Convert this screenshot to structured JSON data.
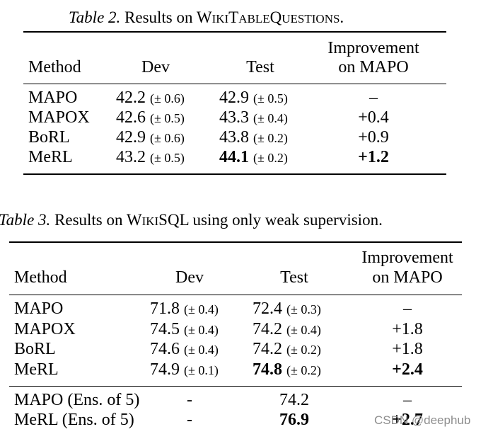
{
  "table2": {
    "caption_label": "Table 2.",
    "caption_text": "Results on WikiTableQuestions.",
    "headers": {
      "method": "Method",
      "dev": "Dev",
      "test": "Test",
      "improvement_line1": "Improvement",
      "improvement_line2": "on MAPO"
    },
    "rows": [
      {
        "method": "MAPO",
        "dev": "42.2",
        "dev_pm": "(± 0.6)",
        "test": "42.9",
        "test_pm": "(± 0.5)",
        "improvement": "–"
      },
      {
        "method": "MAPOX",
        "dev": "42.6",
        "dev_pm": "(± 0.5)",
        "test": "43.3",
        "test_pm": "(± 0.4)",
        "improvement": "+0.4"
      },
      {
        "method": "BoRL",
        "dev": "42.9",
        "dev_pm": "(± 0.6)",
        "test": "43.8",
        "test_pm": "(± 0.2)",
        "improvement": "+0.9"
      },
      {
        "method": "MeRL",
        "dev": "43.2",
        "dev_pm": "(± 0.5)",
        "test": "44.1",
        "test_pm": "(± 0.2)",
        "improvement": "+1.2"
      }
    ]
  },
  "table3": {
    "caption_label": "Table 3.",
    "caption_text": "Results on WikiSQL using only weak supervision.",
    "headers": {
      "method": "Method",
      "dev": "Dev",
      "test": "Test",
      "improvement_line1": "Improvement",
      "improvement_line2": "on MAPO"
    },
    "rows": [
      {
        "method": "MAPO",
        "dev": "71.8",
        "dev_pm": "(± 0.4)",
        "test": "72.4",
        "test_pm": "(± 0.3)",
        "improvement": "–"
      },
      {
        "method": "MAPOX",
        "dev": "74.5",
        "dev_pm": "(± 0.4)",
        "test": "74.2",
        "test_pm": "(± 0.4)",
        "improvement": "+1.8"
      },
      {
        "method": "BoRL",
        "dev": "74.6",
        "dev_pm": "(± 0.4)",
        "test": "74.2",
        "test_pm": "(± 0.2)",
        "improvement": "+1.8"
      },
      {
        "method": "MeRL",
        "dev": "74.9",
        "dev_pm": "(± 0.1)",
        "test": "74.8",
        "test_pm": "(± 0.2)",
        "improvement": "+2.4"
      }
    ],
    "ensemble_rows": [
      {
        "method": "MAPO (Ens. of 5)",
        "dev": "-",
        "test": "74.2",
        "improvement": "–"
      },
      {
        "method": "MeRL (Ens. of 5)",
        "dev": "-",
        "test": "76.9",
        "improvement": "+2.7"
      }
    ]
  },
  "watermark": "CSDN @deephub"
}
